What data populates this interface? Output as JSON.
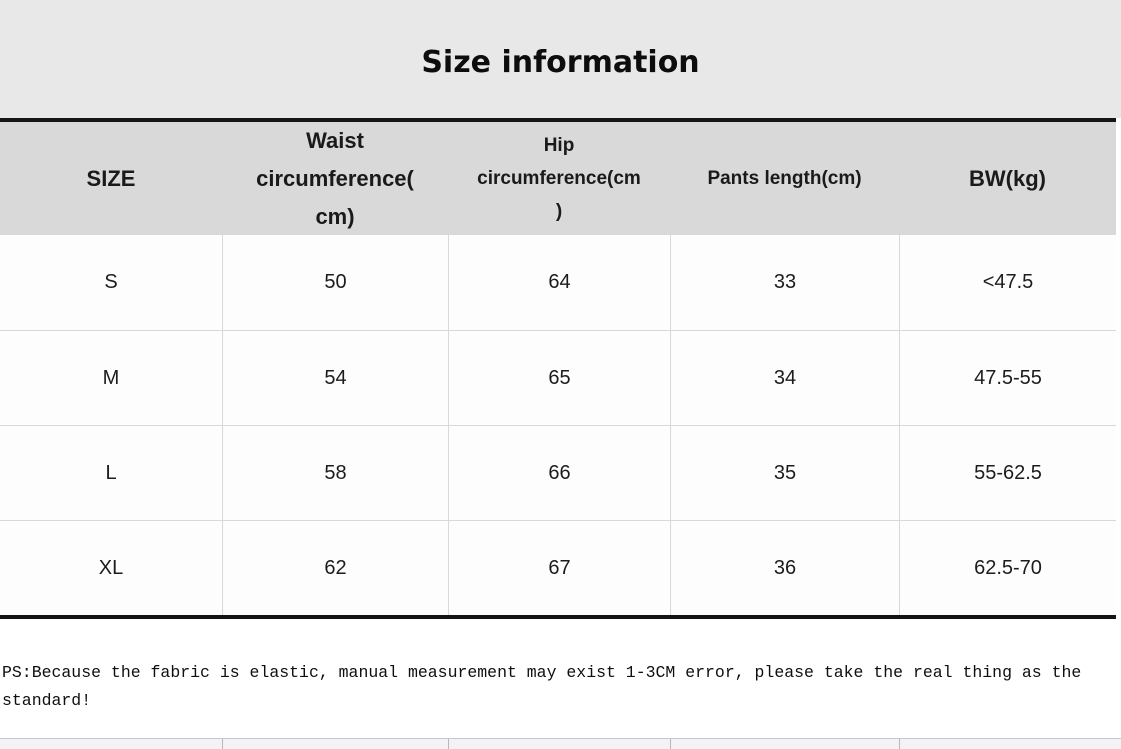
{
  "title": "Size information",
  "table": {
    "header": [
      {
        "lines": [
          "SIZE"
        ]
      },
      {
        "lines": [
          "Waist",
          "circumference(",
          "cm)"
        ]
      },
      {
        "lines": [
          "Hip",
          "circumference(cm",
          ")"
        ]
      },
      {
        "lines": [
          "Pants length(cm)"
        ]
      },
      {
        "lines": [
          "BW(kg)"
        ]
      }
    ],
    "rows": [
      {
        "size": "S",
        "waist": "50",
        "hip": "64",
        "pants_length": "33",
        "bw": "<47.5"
      },
      {
        "size": "M",
        "waist": "54",
        "hip": "65",
        "pants_length": "34",
        "bw": "47.5-55"
      },
      {
        "size": "L",
        "waist": "58",
        "hip": "66",
        "pants_length": "35",
        "bw": "55-62.5"
      },
      {
        "size": "XL",
        "waist": "62",
        "hip": "67",
        "pants_length": "36",
        "bw": "62.5-70"
      }
    ]
  },
  "note": {
    "lines": [
      "PS:Because the fabric is elastic, manual measurement may exist 1-3CM error, please take the real thing as the",
      "standard!"
    ]
  },
  "colors": {
    "title_band_bg": "#e8e8e8",
    "header_bg": "#d9d9d9",
    "table_border": "#151515",
    "grid_line": "#d6d7df"
  }
}
